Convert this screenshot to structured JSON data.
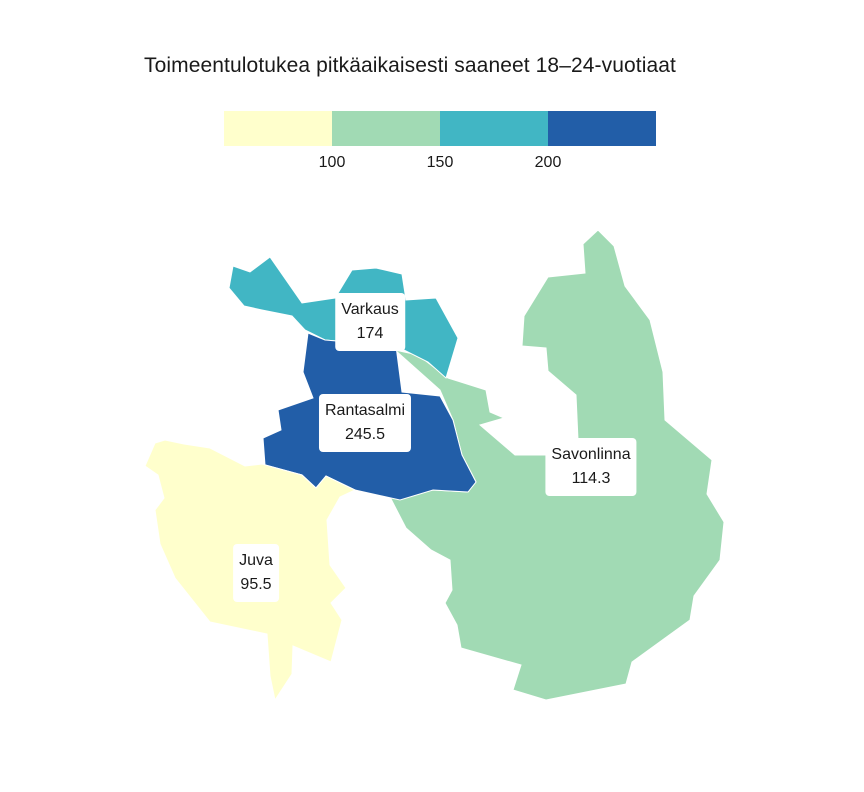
{
  "title": "Toimeentulotukea pitkäaikaisesti saaneet 18–24-vuotiaat",
  "legend": {
    "colors": [
      "#ffffcc",
      "#a1dab4",
      "#41b6c4",
      "#225ea8"
    ],
    "ticks": [
      "100",
      "150",
      "200"
    ]
  },
  "regions": [
    {
      "name": "Varkaus",
      "value": "174",
      "color": "#41b6c4"
    },
    {
      "name": "Rantasalmi",
      "value": "245.5",
      "color": "#225ea8"
    },
    {
      "name": "Savonlinna",
      "value": "114.3",
      "color": "#a1dab4"
    },
    {
      "name": "Juva",
      "value": "95.5",
      "color": "#ffffcc"
    }
  ]
}
